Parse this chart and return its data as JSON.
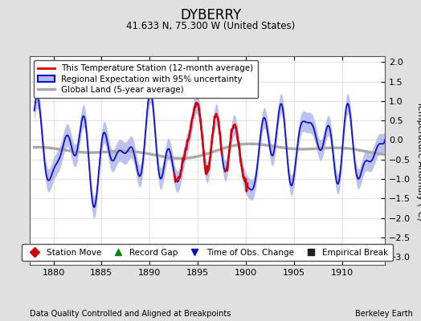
{
  "title": "DYBERRY",
  "subtitle": "41.633 N, 75.300 W (United States)",
  "xlabel_bottom": "Data Quality Controlled and Aligned at Breakpoints",
  "xlabel_right": "Berkeley Earth",
  "ylabel": "Temperature Anomaly (°C)",
  "xlim": [
    1877.5,
    1914.5
  ],
  "ylim": [
    -3.2,
    2.15
  ],
  "yticks": [
    -3,
    -2.5,
    -2,
    -1.5,
    -1,
    -0.5,
    0,
    0.5,
    1,
    1.5,
    2
  ],
  "xticks": [
    1880,
    1885,
    1890,
    1895,
    1900,
    1905,
    1910
  ],
  "background_color": "#e0e0e0",
  "plot_bg_color": "#ffffff",
  "blue_line_color": "#1111cc",
  "blue_fill_color": "#b0b8ee",
  "red_line_color": "#dd0000",
  "gray_line_color": "#aaaaaa",
  "legend_items": [
    "This Temperature Station (12-month average)",
    "Regional Expectation with 95% uncertainty",
    "Global Land (5-year average)"
  ],
  "marker_legend": [
    {
      "label": "Station Move",
      "color": "#cc0000",
      "marker": "D"
    },
    {
      "label": "Record Gap",
      "color": "#008800",
      "marker": "^"
    },
    {
      "label": "Time of Obs. Change",
      "color": "#0000cc",
      "marker": "v"
    },
    {
      "label": "Empirical Break",
      "color": "#222222",
      "marker": "s"
    }
  ]
}
